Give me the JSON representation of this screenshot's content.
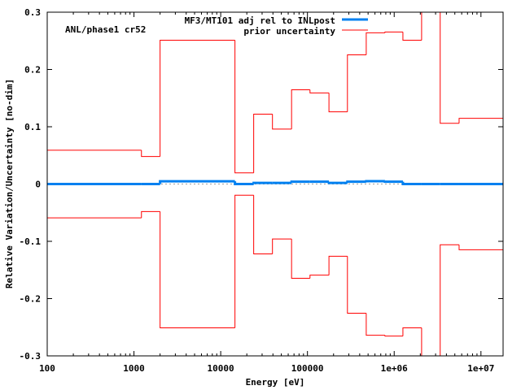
{
  "chart_data": {
    "type": "line",
    "step": true,
    "title": "",
    "annotation": "ANL/phase1 cr52",
    "xlabel": "Energy [eV]",
    "ylabel": "Relative Variation/Uncertainty [no-dim]",
    "xscale": "log",
    "xlim": [
      100,
      18000000
    ],
    "ylim": [
      -0.3,
      0.3
    ],
    "grid": false,
    "legend_position": "top-center",
    "x_tick_labels": [
      "100",
      "1000",
      "10000",
      "100000",
      "1e+06",
      "1e+07"
    ],
    "x_tick_values": [
      100,
      1000,
      10000,
      100000,
      1000000,
      10000000
    ],
    "y_tick_labels": [
      "0.3",
      "0.2",
      "0.1",
      "0",
      "-0.1",
      "-0.2",
      "-0.3"
    ],
    "y_tick_values": [
      0.3,
      0.2,
      0.1,
      0,
      -0.1,
      -0.2,
      -0.3
    ],
    "bin_edges": [
      100,
      1220,
      2000,
      14600,
      24000,
      39500,
      65600,
      107000,
      177000,
      289000,
      476000,
      783000,
      1260000,
      2070000,
      3390000,
      5600000,
      18000000
    ],
    "series": [
      {
        "name": "MF3/MT101 adj rel to INLpost",
        "color": "#0080f0",
        "values": [
          0,
          0,
          0.0047,
          0,
          0.002,
          0.002,
          0.004,
          0.004,
          0.002,
          0.004,
          0.005,
          0.004,
          0,
          0,
          0,
          0
        ]
      },
      {
        "name": "prior uncertainty",
        "color": "#ff0000",
        "symmetric": true,
        "values": [
          0.059,
          0.048,
          0.251,
          0.0195,
          0.122,
          0.096,
          0.1645,
          0.159,
          0.126,
          0.2256,
          0.264,
          0.2655,
          0.251,
          0.3,
          0.106,
          0.1147
        ]
      }
    ],
    "zero_line_color": "#a0a0a0"
  }
}
